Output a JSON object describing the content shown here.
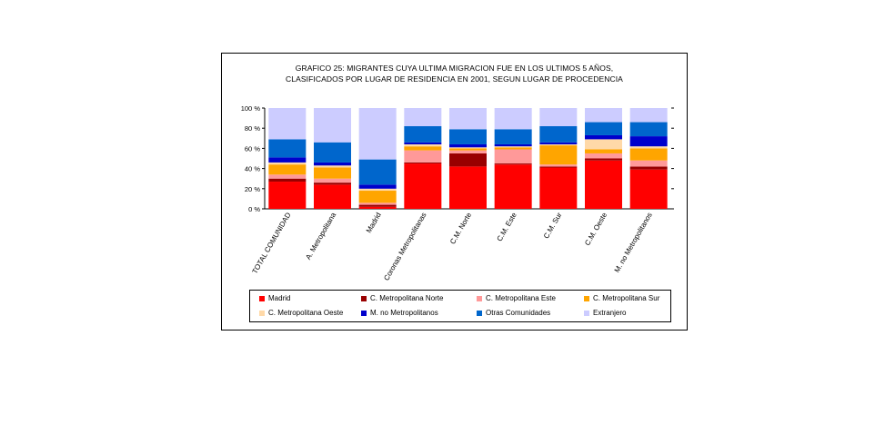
{
  "title_lines": [
    "GRAFICO 25: MIGRANTES CUYA ULTIMA MIGRACION FUE EN LOS ULTIMOS 5 AÑOS,",
    "CLASIFICADOS POR LUGAR DE RESIDENCIA EN 2001, SEGUN LUGAR DE PROCEDENCIA"
  ],
  "chart_data": {
    "type": "bar",
    "stacked": true,
    "percent_scale": true,
    "title": "GRAFICO 25: MIGRANTES CUYA ULTIMA MIGRACION FUE EN LOS ULTIMOS 5 AÑOS, CLASIFICADOS POR LUGAR DE RESIDENCIA EN 2001, SEGUN LUGAR DE PROCEDENCIA",
    "xlabel": "",
    "ylabel": "",
    "ylim": [
      0,
      100
    ],
    "yticks": [
      "0 %",
      "20 %",
      "40 %",
      "60 %",
      "80 %",
      "100 %"
    ],
    "grid": false,
    "legend_position": "bottom",
    "categories": [
      "TOTAL COMUNIDAD",
      "A. Metropolitana",
      "Madrid",
      "Coronas Metropolitanas",
      "C.M. Norte",
      "C.M. Este",
      "C.M. Sur",
      "C.M. Oeste",
      "M. no Metropolitanos"
    ],
    "series": [
      {
        "name": "Madrid",
        "color": "#ff0000",
        "values": [
          27,
          24,
          2,
          45,
          42,
          44,
          41,
          48,
          39
        ]
      },
      {
        "name": "C. Metropolitana Norte",
        "color": "#990000",
        "values": [
          3,
          2,
          2,
          1,
          13,
          1,
          1,
          2,
          3
        ]
      },
      {
        "name": "C. Metropolitana Este",
        "color": "#ff9999",
        "values": [
          4,
          4,
          2,
          12,
          3,
          14,
          2,
          5,
          6
        ]
      },
      {
        "name": "C. Metropolitana Sur",
        "color": "#ffa500",
        "values": [
          10,
          11,
          12,
          4,
          2,
          2,
          19,
          4,
          12
        ]
      },
      {
        "name": "C. Metropolitana Oeste",
        "color": "#ffd9a8",
        "values": [
          2,
          2,
          2,
          2,
          1,
          1,
          1,
          10,
          2
        ]
      },
      {
        "name": "M. no Metropolitanos",
        "color": "#0000cc",
        "values": [
          5,
          3,
          4,
          2,
          3,
          2,
          2,
          4,
          10
        ]
      },
      {
        "name": "Otras Comunidades",
        "color": "#0066cc",
        "values": [
          18,
          20,
          25,
          16,
          15,
          15,
          16,
          13,
          14
        ]
      },
      {
        "name": "Extranjero",
        "color": "#ccccff",
        "values": [
          31,
          34,
          51,
          18,
          21,
          21,
          18,
          14,
          14
        ]
      }
    ]
  }
}
